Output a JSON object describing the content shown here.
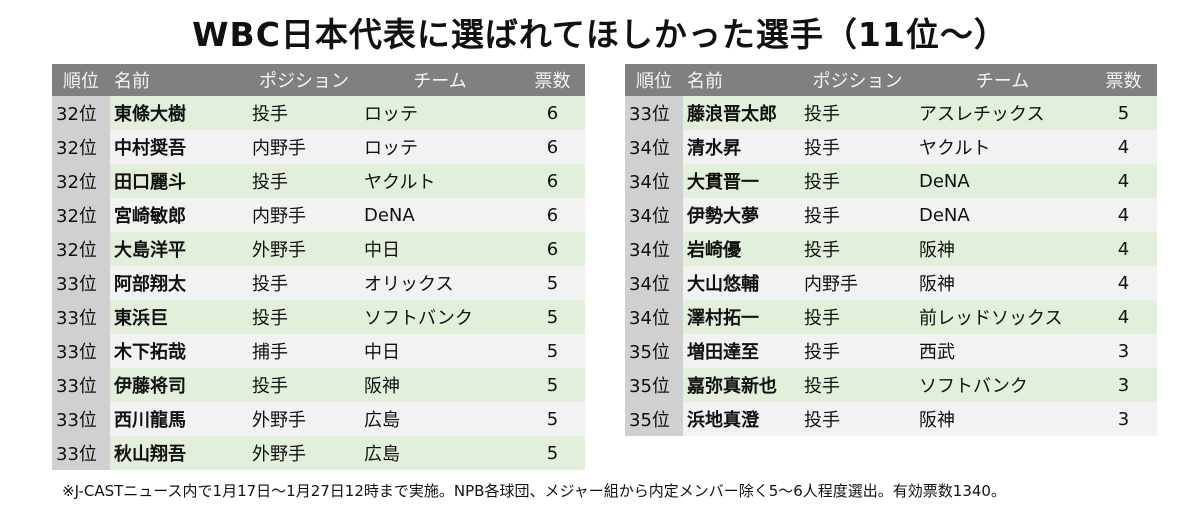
{
  "title": "WBC日本代表に選ばれてほしかった選手（11位～）",
  "header": [
    "順位",
    "名前",
    "ポジション",
    "チーム",
    "票数"
  ],
  "tables": [
    {
      "rows": [
        [
          "32位",
          "東條大樹",
          "投手",
          "ロッテ",
          6
        ],
        [
          "32位",
          "中村奨吾",
          "内野手",
          "ロッテ",
          6
        ],
        [
          "32位",
          "田口麗斗",
          "投手",
          "ヤクルト",
          6
        ],
        [
          "32位",
          "宮崎敏郎",
          "内野手",
          "DeNA",
          6
        ],
        [
          "32位",
          "大島洋平",
          "外野手",
          "中日",
          6
        ],
        [
          "33位",
          "阿部翔太",
          "投手",
          "オリックス",
          5
        ],
        [
          "33位",
          "東浜巨",
          "投手",
          "ソフトバンク",
          5
        ],
        [
          "33位",
          "木下拓哉",
          "捕手",
          "中日",
          5
        ],
        [
          "33位",
          "伊藤将司",
          "投手",
          "阪神",
          5
        ],
        [
          "33位",
          "西川龍馬",
          "外野手",
          "広島",
          5
        ],
        [
          "33位",
          "秋山翔吾",
          "外野手",
          "広島",
          5
        ]
      ]
    },
    {
      "rows": [
        [
          "33位",
          "藤浪晋太郎",
          "投手",
          "アスレチックス",
          5
        ],
        [
          "34位",
          "清水昇",
          "投手",
          "ヤクルト",
          4
        ],
        [
          "34位",
          "大貫晋一",
          "投手",
          "DeNA",
          4
        ],
        [
          "34位",
          "伊勢大夢",
          "投手",
          "DeNA",
          4
        ],
        [
          "34位",
          "岩崎優",
          "投手",
          "阪神",
          4
        ],
        [
          "34位",
          "大山悠輔",
          "内野手",
          "阪神",
          4
        ],
        [
          "34位",
          "澤村拓一",
          "投手",
          "前レッドソックス",
          4
        ],
        [
          "35位",
          "増田達至",
          "投手",
          "西武",
          3
        ],
        [
          "35位",
          "嘉弥真新也",
          "投手",
          "ソフトバンク",
          3
        ],
        [
          "35位",
          "浜地真澄",
          "投手",
          "阪神",
          3
        ]
      ]
    }
  ],
  "note": "※J-CASTニュース内で1月17日～1月27日12時まで実施。NPB各球団、メジャー組から内定メンバー除く5～6人程度選出。有効票数1340。"
}
